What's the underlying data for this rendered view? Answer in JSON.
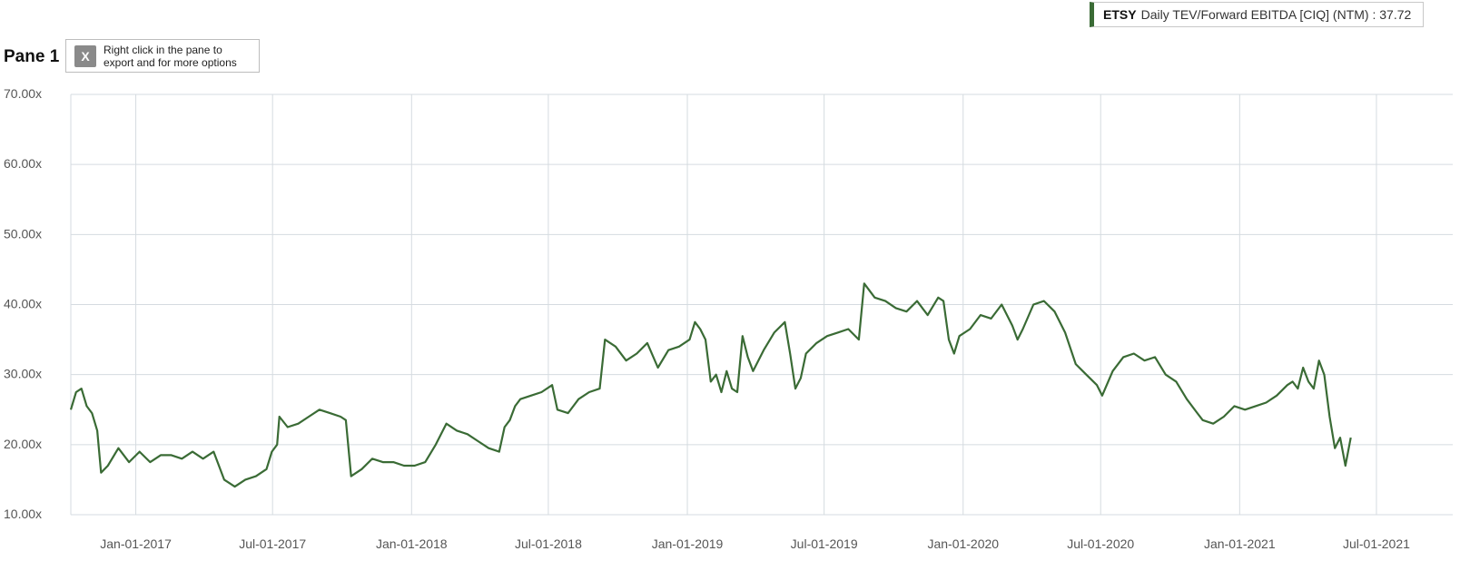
{
  "legend": {
    "ticker": "ETSY",
    "series_label": "Daily TEV/Forward EBITDA [CIQ] (NTM) : 37.72"
  },
  "pane": {
    "title": "Pane 1",
    "export_line1": "Right click in the pane to",
    "export_line2": "export and for more options",
    "export_icon": "excel-icon"
  },
  "colors": {
    "series": "#3a6b35",
    "grid": "#d5dbe0",
    "axis_text": "#555555"
  },
  "chart_data": {
    "type": "line",
    "title": "",
    "xlabel": "",
    "ylabel": "",
    "ylim": [
      10,
      70
    ],
    "xlim": [
      "2016-10-07",
      "2021-10-10"
    ],
    "y_ticks": [
      "70.00x",
      "60.00x",
      "50.00x",
      "40.00x",
      "30.00x",
      "20.00x",
      "10.00x"
    ],
    "y_tick_values": [
      70,
      60,
      50,
      40,
      30,
      20,
      10
    ],
    "x_ticks": [
      "Jan-01-2017",
      "Jul-01-2017",
      "Jan-01-2018",
      "Jul-01-2018",
      "Jan-01-2019",
      "Jul-01-2019",
      "Jan-01-2020",
      "Jul-01-2020",
      "Jan-01-2021",
      "Jul-01-2021"
    ],
    "x_tick_dates": [
      "2017-01-01",
      "2017-07-01",
      "2018-01-01",
      "2018-07-01",
      "2019-01-01",
      "2019-07-01",
      "2020-01-01",
      "2020-07-01",
      "2021-01-01",
      "2021-07-01"
    ],
    "grid": true,
    "series": [
      {
        "name": "ETSY Daily TEV/Forward EBITDA [CIQ] (NTM)",
        "points": [
          [
            "2016-10-07",
            25.0
          ],
          [
            "2016-10-14",
            27.5
          ],
          [
            "2016-10-21",
            28.0
          ],
          [
            "2016-10-28",
            25.5
          ],
          [
            "2016-11-04",
            24.5
          ],
          [
            "2016-11-11",
            22.0
          ],
          [
            "2016-11-16",
            16.0
          ],
          [
            "2016-11-25",
            17.0
          ],
          [
            "2016-12-09",
            19.5
          ],
          [
            "2016-12-23",
            17.5
          ],
          [
            "2017-01-06",
            19.0
          ],
          [
            "2017-01-20",
            17.5
          ],
          [
            "2017-02-03",
            18.5
          ],
          [
            "2017-02-17",
            18.5
          ],
          [
            "2017-03-03",
            18.0
          ],
          [
            "2017-03-17",
            19.0
          ],
          [
            "2017-03-31",
            18.0
          ],
          [
            "2017-04-14",
            19.0
          ],
          [
            "2017-04-28",
            15.0
          ],
          [
            "2017-05-12",
            14.0
          ],
          [
            "2017-05-26",
            15.0
          ],
          [
            "2017-06-09",
            15.5
          ],
          [
            "2017-06-23",
            16.5
          ],
          [
            "2017-06-30",
            19.0
          ],
          [
            "2017-07-07",
            20.0
          ],
          [
            "2017-07-10",
            24.0
          ],
          [
            "2017-07-21",
            22.5
          ],
          [
            "2017-08-04",
            23.0
          ],
          [
            "2017-08-18",
            24.0
          ],
          [
            "2017-09-01",
            25.0
          ],
          [
            "2017-09-15",
            24.5
          ],
          [
            "2017-09-29",
            24.0
          ],
          [
            "2017-10-06",
            23.5
          ],
          [
            "2017-10-13",
            15.5
          ],
          [
            "2017-10-27",
            16.5
          ],
          [
            "2017-11-10",
            18.0
          ],
          [
            "2017-11-24",
            17.5
          ],
          [
            "2017-12-08",
            17.5
          ],
          [
            "2017-12-22",
            17.0
          ],
          [
            "2018-01-05",
            17.0
          ],
          [
            "2018-01-19",
            17.5
          ],
          [
            "2018-02-02",
            20.0
          ],
          [
            "2018-02-16",
            23.0
          ],
          [
            "2018-03-02",
            22.0
          ],
          [
            "2018-03-16",
            21.5
          ],
          [
            "2018-03-30",
            20.5
          ],
          [
            "2018-04-13",
            19.5
          ],
          [
            "2018-04-27",
            19.0
          ],
          [
            "2018-05-04",
            22.5
          ],
          [
            "2018-05-11",
            23.5
          ],
          [
            "2018-05-18",
            25.5
          ],
          [
            "2018-05-25",
            26.5
          ],
          [
            "2018-06-08",
            27.0
          ],
          [
            "2018-06-22",
            27.5
          ],
          [
            "2018-07-06",
            28.5
          ],
          [
            "2018-07-13",
            25.0
          ],
          [
            "2018-07-27",
            24.5
          ],
          [
            "2018-08-10",
            26.5
          ],
          [
            "2018-08-24",
            27.5
          ],
          [
            "2018-09-07",
            28.0
          ],
          [
            "2018-09-14",
            35.0
          ],
          [
            "2018-09-28",
            34.0
          ],
          [
            "2018-10-12",
            32.0
          ],
          [
            "2018-10-26",
            33.0
          ],
          [
            "2018-11-09",
            34.5
          ],
          [
            "2018-11-23",
            31.0
          ],
          [
            "2018-12-07",
            33.5
          ],
          [
            "2018-12-21",
            34.0
          ],
          [
            "2019-01-04",
            35.0
          ],
          [
            "2019-01-11",
            37.5
          ],
          [
            "2019-01-18",
            36.5
          ],
          [
            "2019-01-25",
            35.0
          ],
          [
            "2019-02-01",
            29.0
          ],
          [
            "2019-02-08",
            30.0
          ],
          [
            "2019-02-15",
            27.5
          ],
          [
            "2019-02-22",
            30.5
          ],
          [
            "2019-03-01",
            28.0
          ],
          [
            "2019-03-08",
            27.5
          ],
          [
            "2019-03-15",
            35.5
          ],
          [
            "2019-03-22",
            32.5
          ],
          [
            "2019-03-29",
            30.5
          ],
          [
            "2019-04-12",
            33.5
          ],
          [
            "2019-04-26",
            36.0
          ],
          [
            "2019-05-10",
            37.5
          ],
          [
            "2019-05-17",
            33.0
          ],
          [
            "2019-05-24",
            28.0
          ],
          [
            "2019-05-31",
            29.5
          ],
          [
            "2019-06-07",
            33.0
          ],
          [
            "2019-06-21",
            34.5
          ],
          [
            "2019-07-05",
            35.5
          ],
          [
            "2019-07-19",
            36.0
          ],
          [
            "2019-08-02",
            36.5
          ],
          [
            "2019-08-16",
            35.0
          ],
          [
            "2019-08-23",
            43.0
          ],
          [
            "2019-09-06",
            41.0
          ],
          [
            "2019-09-20",
            40.5
          ],
          [
            "2019-10-04",
            39.5
          ],
          [
            "2019-10-18",
            39.0
          ],
          [
            "2019-11-01",
            40.5
          ],
          [
            "2019-11-15",
            38.5
          ],
          [
            "2019-11-29",
            41.0
          ],
          [
            "2019-12-06",
            40.5
          ],
          [
            "2019-12-13",
            35.0
          ],
          [
            "2019-12-20",
            33.0
          ],
          [
            "2019-12-27",
            35.5
          ],
          [
            "2020-01-10",
            36.5
          ],
          [
            "2020-01-24",
            38.5
          ],
          [
            "2020-02-07",
            38.0
          ],
          [
            "2020-02-21",
            40.0
          ],
          [
            "2020-03-06",
            37.0
          ],
          [
            "2020-03-13",
            35.0
          ],
          [
            "2020-03-20",
            36.5
          ],
          [
            "2020-04-03",
            40.0
          ],
          [
            "2020-04-17",
            40.5
          ],
          [
            "2020-05-01",
            39.0
          ],
          [
            "2020-05-15",
            36.0
          ],
          [
            "2020-05-29",
            31.5
          ],
          [
            "2020-06-12",
            30.0
          ],
          [
            "2020-06-26",
            28.5
          ],
          [
            "2020-07-03",
            27.0
          ],
          [
            "2020-07-17",
            30.5
          ],
          [
            "2020-07-31",
            32.5
          ],
          [
            "2020-08-14",
            33.0
          ],
          [
            "2020-08-28",
            32.0
          ],
          [
            "2020-09-11",
            32.5
          ],
          [
            "2020-09-25",
            30.0
          ],
          [
            "2020-10-09",
            29.0
          ],
          [
            "2020-10-23",
            26.5
          ],
          [
            "2020-11-06",
            24.5
          ],
          [
            "2020-11-13",
            23.5
          ],
          [
            "2020-11-27",
            23.0
          ],
          [
            "2020-12-11",
            24.0
          ],
          [
            "2020-12-25",
            25.5
          ],
          [
            "2021-01-08",
            25.0
          ],
          [
            "2021-01-22",
            25.5
          ],
          [
            "2021-02-05",
            26.0
          ],
          [
            "2021-02-19",
            27.0
          ],
          [
            "2021-03-05",
            28.5
          ],
          [
            "2021-03-12",
            29.0
          ],
          [
            "2021-03-19",
            28.0
          ],
          [
            "2021-03-26",
            31.0
          ],
          [
            "2021-04-02",
            29.0
          ],
          [
            "2021-04-09",
            28.0
          ],
          [
            "2021-04-16",
            32.0
          ],
          [
            "2021-04-23",
            30.0
          ],
          [
            "2021-04-30",
            24.0
          ],
          [
            "2021-05-07",
            19.5
          ],
          [
            "2021-05-14",
            21.0
          ],
          [
            "2021-05-21",
            17.0
          ],
          [
            "2021-05-28",
            21.0
          ]
        ]
      }
    ]
  }
}
